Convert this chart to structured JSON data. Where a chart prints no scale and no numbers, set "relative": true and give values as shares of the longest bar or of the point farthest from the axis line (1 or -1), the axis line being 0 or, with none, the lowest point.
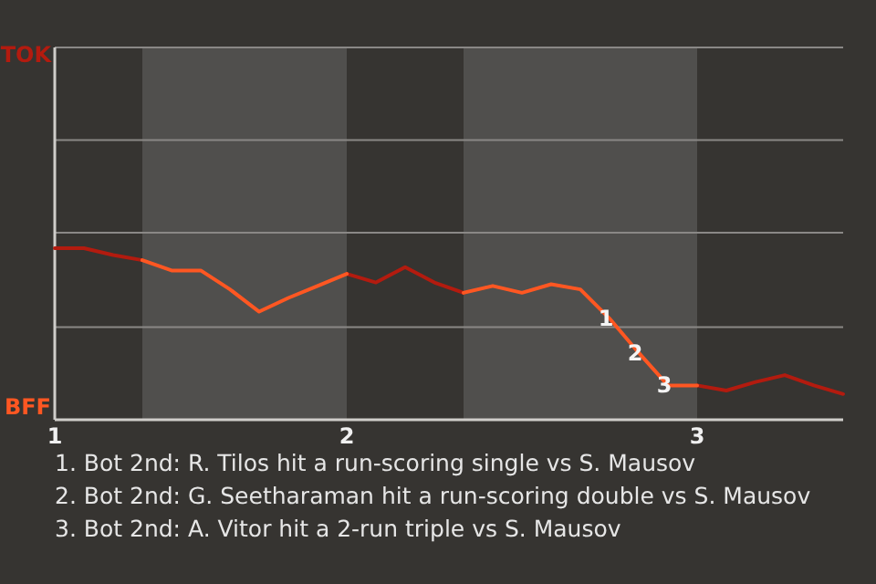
{
  "chart_data": {
    "type": "line",
    "relative": true,
    "categories": [
      "1",
      null,
      null,
      null,
      null,
      null,
      null,
      null,
      null,
      null,
      "2",
      null,
      null,
      null,
      null,
      null,
      null,
      null,
      null,
      null,
      null,
      null,
      "3",
      null,
      null,
      null,
      null,
      null
    ],
    "series": [
      {
        "color": "#b31b0f",
        "values": [
          1,
          1,
          0.96,
          0.93,
          null,
          null,
          null,
          null,
          null,
          null,
          0.85,
          0.8,
          0.89,
          0.8,
          0.74,
          null,
          null,
          null,
          null,
          null,
          null,
          null,
          0.2,
          0.17,
          0.22,
          0.26,
          0.2,
          0.15
        ]
      },
      {
        "color": "#ff5722",
        "values": [
          null,
          null,
          null,
          0.93,
          0.87,
          0.87,
          0.76,
          0.63,
          0.71,
          0.78,
          0.85,
          null,
          null,
          null,
          0.74,
          0.78,
          0.74,
          0.79,
          0.76,
          0.59,
          0.39,
          0.2,
          0.2,
          null,
          null,
          null,
          null,
          null
        ]
      }
    ],
    "marker": "none",
    "line_style": "solid",
    "ref_lines": [
      {
        "axis": "y",
        "value": 0.54,
        "color": "#8a8886"
      },
      {
        "axis": "y",
        "value": 1.09,
        "color": "#8a8886"
      },
      {
        "axis": "y",
        "value": 1.63,
        "color": "#8a8886"
      },
      {
        "axis": "y",
        "value": 2.17,
        "color": "#8a8886"
      }
    ],
    "annotations": [
      "TOK",
      "BFF",
      {
        "text": "1",
        "y": 0.59
      },
      {
        "text": "2",
        "y": 0.39
      },
      {
        "text": "3",
        "y": 0.2
      },
      "1. Bot 2nd: R. Tilos hit a run-scoring single vs S. Mausov",
      "2. Bot 2nd: G. Seetharaman hit a run-scoring double vs S. Mausov",
      "3. Bot 2nd: A. Vitor hit a 2-run triple vs S. Mausov"
    ]
  }
}
